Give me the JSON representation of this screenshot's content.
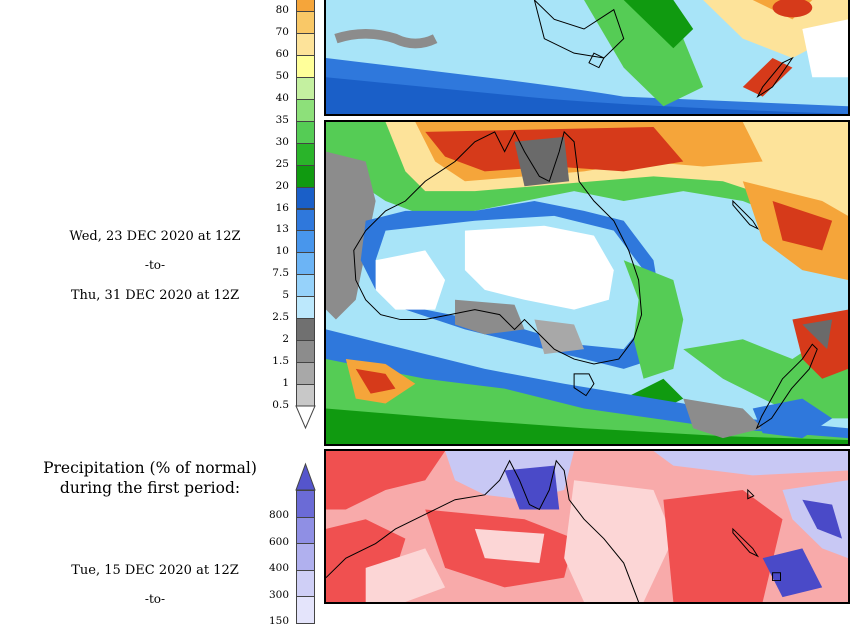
{
  "period1": {
    "start_label": "Wed, 23 DEC 2020 at 12Z",
    "to_label": "-to-",
    "end_label": "Thu, 31 DEC 2020 at 12Z"
  },
  "precip_scale": {
    "ticks": [
      "80",
      "70",
      "60",
      "50",
      "40",
      "35",
      "30",
      "25",
      "20",
      "16",
      "13",
      "10",
      "7.5",
      "5",
      "2.5",
      "2",
      "1.5",
      "1",
      "0.5"
    ],
    "colors": [
      "#f5a53a",
      "#f9c867",
      "#fde39a",
      "#ffff9a",
      "#c4f0a0",
      "#8de07a",
      "#55cc55",
      "#2ab42a",
      "#109a10",
      "#1a5fc8",
      "#2f78dc",
      "#4896ec",
      "#6cb4f5",
      "#96d2fa",
      "#bce8fc",
      "#707070",
      "#8c8c8c",
      "#a8a8a8",
      "#c8c8c8"
    ]
  },
  "percent_normal": {
    "title_line1": "Precipitation (% of normal)",
    "title_line2": "during the first period:",
    "start_label": "Tue, 15 DEC 2020 at 12Z",
    "to_label": "-to-",
    "ticks": [
      "800",
      "600",
      "400",
      "300",
      "150"
    ],
    "colors": [
      "#6b6bd6",
      "#8f8fe4",
      "#b0b0ee",
      "#cfcff6",
      "#e4e4fb"
    ]
  },
  "map_colors": {
    "ocean_cyan": "#a8e4f8",
    "ocean_blue": "#2f78dc",
    "deep_blue": "#1a5fc8",
    "green": "#55cc55",
    "dark_green": "#109a10",
    "yellow": "#fde39a",
    "orange": "#f5a53a",
    "red": "#d63a1a",
    "dark_red": "#a01a10",
    "gray": "#8c8c8c",
    "dark_gray": "#6a6a6a",
    "white": "#ffffff",
    "pct_red": "#f05050",
    "pct_pink": "#f8aaaa",
    "pct_lightpink": "#fcd6d6",
    "pct_blue": "#4a4ac8",
    "pct_lightblue": "#c8c8f4"
  }
}
